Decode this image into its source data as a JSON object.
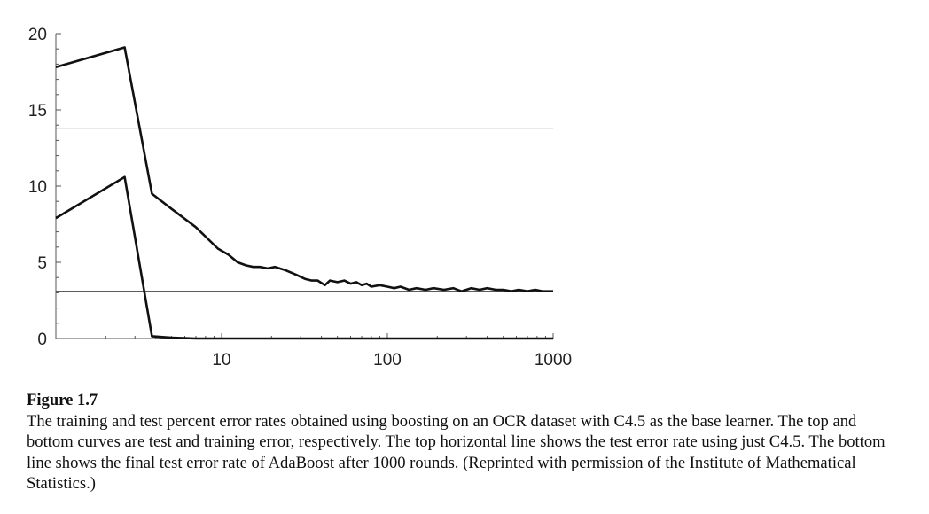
{
  "chart_data": {
    "type": "line",
    "x_scale": "log",
    "xlim": [
      1,
      1000
    ],
    "ylim": [
      0,
      20
    ],
    "x_ticks": [
      {
        "value": 10,
        "label": "10"
      },
      {
        "value": 100,
        "label": "100"
      },
      {
        "value": 1000,
        "label": "1000"
      }
    ],
    "y_ticks": [
      {
        "value": 0,
        "label": "0"
      },
      {
        "value": 5,
        "label": "5"
      },
      {
        "value": 10,
        "label": "10"
      },
      {
        "value": 15,
        "label": "15"
      },
      {
        "value": 20,
        "label": "20"
      }
    ],
    "grid": false,
    "series": [
      {
        "points": [
          [
            1,
            17.8
          ],
          [
            2.6,
            19.1
          ],
          [
            3.8,
            9.5
          ],
          [
            5,
            8.5
          ],
          [
            7,
            7.3
          ],
          [
            9.5,
            5.9
          ],
          [
            11,
            5.5
          ],
          [
            12.5,
            5.0
          ],
          [
            14,
            4.8
          ],
          [
            15.5,
            4.7
          ],
          [
            17,
            4.7
          ],
          [
            19,
            4.6
          ],
          [
            21,
            4.7
          ],
          [
            24,
            4.5
          ],
          [
            28,
            4.2
          ],
          [
            32,
            3.9
          ],
          [
            35,
            3.8
          ],
          [
            38,
            3.8
          ],
          [
            42,
            3.5
          ],
          [
            45,
            3.8
          ],
          [
            50,
            3.7
          ],
          [
            55,
            3.8
          ],
          [
            60,
            3.6
          ],
          [
            65,
            3.7
          ],
          [
            70,
            3.5
          ],
          [
            75,
            3.6
          ],
          [
            80,
            3.4
          ],
          [
            90,
            3.5
          ],
          [
            100,
            3.4
          ],
          [
            110,
            3.3
          ],
          [
            120,
            3.4
          ],
          [
            135,
            3.2
          ],
          [
            150,
            3.3
          ],
          [
            170,
            3.2
          ],
          [
            190,
            3.3
          ],
          [
            220,
            3.2
          ],
          [
            250,
            3.3
          ],
          [
            280,
            3.1
          ],
          [
            320,
            3.3
          ],
          [
            360,
            3.2
          ],
          [
            400,
            3.3
          ],
          [
            450,
            3.2
          ],
          [
            500,
            3.2
          ],
          [
            560,
            3.1
          ],
          [
            620,
            3.2
          ],
          [
            700,
            3.1
          ],
          [
            780,
            3.2
          ],
          [
            860,
            3.1
          ],
          [
            1000,
            3.1
          ]
        ]
      },
      {
        "points": [
          [
            1,
            7.9
          ],
          [
            2.6,
            10.6
          ],
          [
            3.8,
            0.15
          ],
          [
            5,
            0.05
          ],
          [
            7,
            0.0
          ],
          [
            10,
            0.0
          ],
          [
            100,
            0.0
          ],
          [
            1000,
            0.0
          ]
        ]
      }
    ],
    "reference_lines": [
      {
        "y": 13.8
      },
      {
        "y": 3.1
      }
    ]
  },
  "caption": {
    "title": "Figure 1.7",
    "text": "The training and test percent error rates obtained using boosting on an OCR dataset with C4.5 as the base learner. The top and bottom curves are test and training error, respectively. The top horizontal line shows the test error rate using just C4.5. The bottom line shows the final test error rate of AdaBoost after 1000 rounds. (Reprinted with permission of the Institute of Mathematical Statistics.)"
  }
}
